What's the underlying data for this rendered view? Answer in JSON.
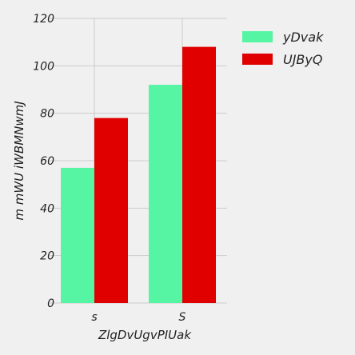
{
  "chart_data": {
    "type": "bar",
    "title": "",
    "xlabel": "ZlgDvUgvPIUak",
    "ylabel": "m mWU iWBMNwmJ",
    "categories": [
      "s",
      "S"
    ],
    "series": [
      {
        "name": "yDvak",
        "values": [
          57,
          92
        ],
        "color": "#55f5a3"
      },
      {
        "name": "UJByQ",
        "values": [
          78,
          108
        ],
        "color": "#e00000"
      }
    ],
    "ylim": [
      0,
      120
    ],
    "yticks": [
      0,
      20,
      40,
      60,
      80,
      100,
      120
    ],
    "grid": true,
    "legend_position": "top-right"
  }
}
